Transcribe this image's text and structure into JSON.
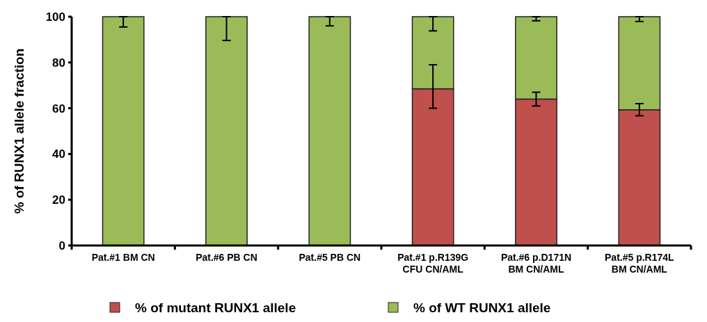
{
  "chart_data": {
    "type": "bar",
    "stacked": true,
    "ylabel": "% of RUNX1 allele fraction",
    "categories": [
      "Pat.#1 BM CN",
      "Pat.#6 PB CN",
      "Pat.#5 PB CN",
      "Pat.#1 p.R139G\nCFU CN/AML",
      "Pat.#6 p.D171N\nBM CN/AML",
      "Pat.#5 p.R174L\nBM CN/AML"
    ],
    "series": [
      {
        "name": "% of mutant RUNX1 allele",
        "color": "#c0504d",
        "values": [
          0,
          0,
          0,
          68.5,
          64,
          59.3
        ],
        "errors": [
          null,
          null,
          null,
          [
            60,
            79
          ],
          [
            61,
            67
          ],
          [
            56.7,
            62
          ]
        ]
      },
      {
        "name": "% of WT RUNX1 allele",
        "color": "#9bbb59",
        "values": [
          100,
          100,
          100,
          31.5,
          36,
          40.7
        ],
        "errors": [
          [
            95.5,
            100
          ],
          [
            89.6,
            100
          ],
          [
            96,
            100
          ],
          [
            93.8,
            100
          ],
          [
            98.2,
            100
          ],
          [
            97.9,
            100
          ]
        ]
      }
    ],
    "ylim": [
      0,
      100
    ],
    "yticks": [
      0,
      20,
      40,
      60,
      80,
      100
    ],
    "legend": "bottom"
  }
}
